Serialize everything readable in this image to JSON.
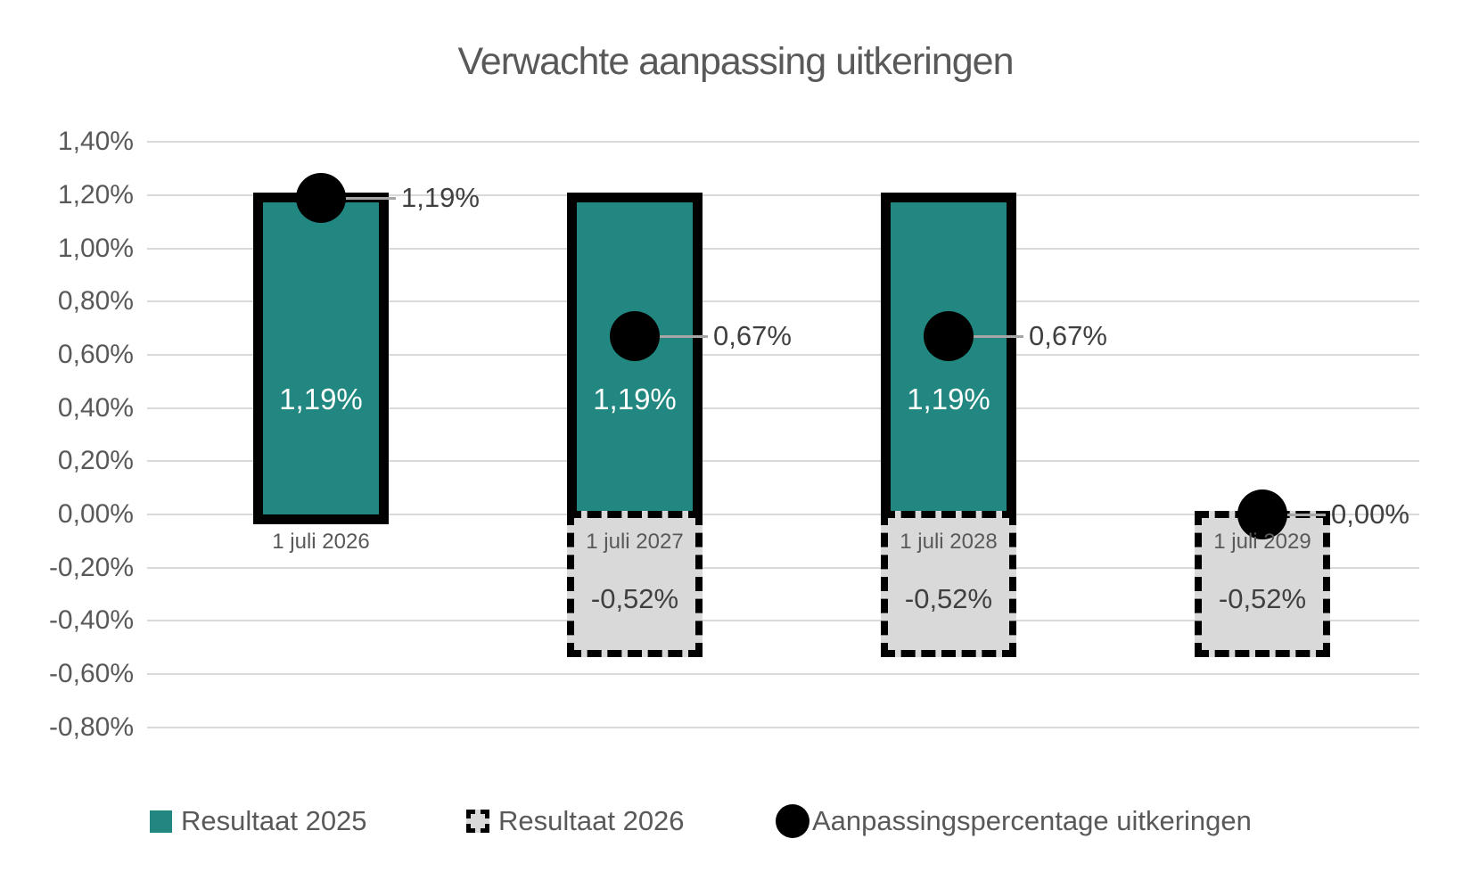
{
  "title": "Verwachte aanpassing uitkeringen",
  "colors": {
    "teal_fill": "#218780",
    "bar_border": "#000000",
    "gray_fill": "#D9D9D9",
    "gridline": "#D9D9D9",
    "axis_text": "#595959",
    "data_label_dark": "#404040",
    "data_label_white": "#FFFFFF",
    "leader_line": "#A6A6A6",
    "marker": "#000000",
    "background": "#FFFFFF"
  },
  "chart_data": {
    "type": "bar",
    "title": "Verwachte aanpassing uitkeringen",
    "categories": [
      "1 juli 2026",
      "1 juli 2027",
      "1 juli 2028",
      "1 juli 2029"
    ],
    "series": [
      {
        "name": "Resultaat 2025",
        "render": "bar",
        "style": "teal-solid-black-border",
        "values": [
          1.19,
          1.19,
          1.19,
          null
        ],
        "labels": [
          "1,19%",
          "1,19%",
          "1,19%",
          null
        ]
      },
      {
        "name": "Resultaat 2026",
        "render": "bar",
        "style": "gray-dashed-black-border",
        "values": [
          null,
          -0.52,
          -0.52,
          -0.52
        ],
        "labels": [
          null,
          "-0,52%",
          "-0,52%",
          "-0,52%"
        ]
      },
      {
        "name": "Aanpassingspercentage uitkeringen",
        "render": "point",
        "style": "black-circle",
        "values": [
          1.19,
          0.67,
          0.67,
          0.0
        ],
        "labels": [
          "1,19%",
          "0,67%",
          "0,67%",
          "0,00%"
        ]
      }
    ],
    "y_axis": {
      "unit": "%",
      "ylim": [
        -0.8,
        1.4
      ],
      "tick_step": 0.2,
      "tick_values": [
        1.4,
        1.2,
        1.0,
        0.8,
        0.6,
        0.4,
        0.2,
        0.0,
        -0.2,
        -0.4,
        -0.6,
        -0.8
      ],
      "tick_labels": [
        "1,40%",
        "1,20%",
        "1,00%",
        "0,80%",
        "0,60%",
        "0,40%",
        "0,20%",
        "0,00%",
        "-0,20%",
        "-0,40%",
        "-0,60%",
        "-0,80%"
      ]
    },
    "grid": true,
    "legend_position": "bottom"
  },
  "legend": {
    "items": [
      {
        "label": "Resultaat 2025"
      },
      {
        "label": "Resultaat 2026"
      },
      {
        "label": "Aanpassingspercentage uitkeringen"
      }
    ]
  }
}
